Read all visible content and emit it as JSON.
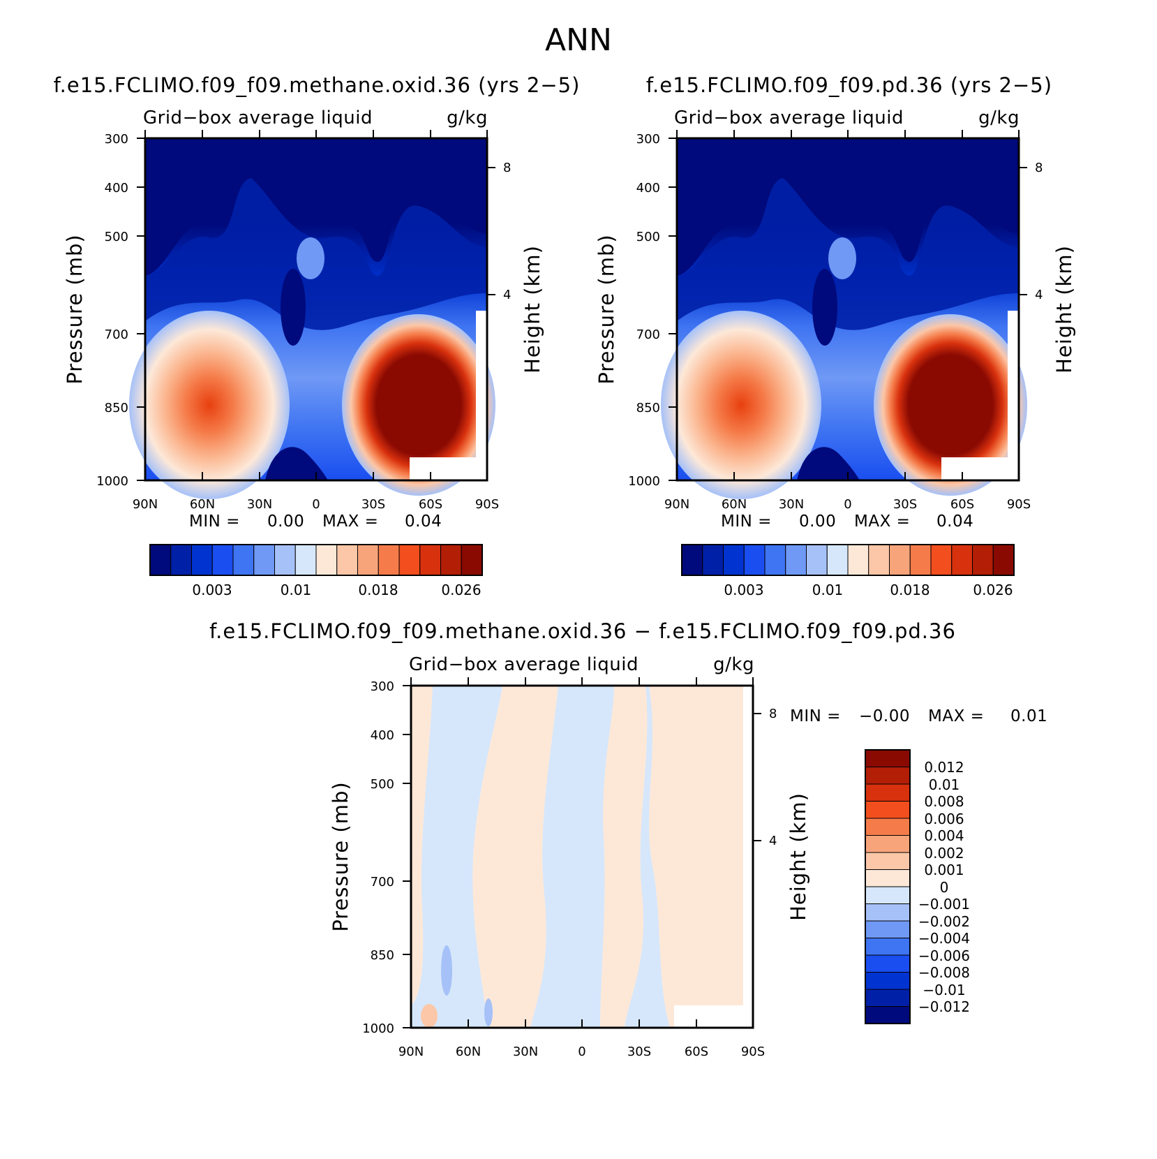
{
  "figure_title": "ANN",
  "colors": {
    "abs_levels": [
      "#000a7c",
      "#0020a8",
      "#0033d0",
      "#1a4ef0",
      "#3f74f2",
      "#6f99f5",
      "#a6c1f8",
      "#d6e7fb",
      "#fde8d8",
      "#fbc7a8",
      "#f8a47b",
      "#f57c4a",
      "#f24e1e",
      "#d8310e",
      "#b21e06",
      "#8a0a02"
    ],
    "diff_levels": [
      "#000a7c",
      "#0020a8",
      "#0033d0",
      "#1a4ef0",
      "#3f74f2",
      "#6f99f5",
      "#a6c1f8",
      "#d6e7fb",
      "#fde8d8",
      "#fbc7a8",
      "#f8a47b",
      "#f57c4a",
      "#f24e1e",
      "#d8310e",
      "#b21e06",
      "#8a0a02"
    ]
  },
  "chart_data": [
    {
      "type": "heatmap",
      "title": "f.e15.FCLIMO.f09_f09.methane.oxid.36 (yrs 2−5)",
      "variable_label": "Grid−box average liquid",
      "units": "g/kg",
      "xlabel": "",
      "ylabel": "Pressure (mb)",
      "y2label": "Height (km)",
      "x_ticks": [
        "90N",
        "60N",
        "30N",
        "0",
        "30S",
        "60S",
        "90S"
      ],
      "y_ticks": [
        "300",
        "400",
        "500",
        "700",
        "850",
        "1000"
      ],
      "y2_ticks": [
        "8",
        "4"
      ],
      "min_label": "MIN =",
      "min_value": "0.00",
      "max_label": "MAX =",
      "max_value": "0.04",
      "colorbar_labels": [
        "0.003",
        "0.01",
        "0.018",
        "0.026"
      ]
    },
    {
      "type": "heatmap",
      "title": "f.e15.FCLIMO.f09_f09.pd.36 (yrs 2−5)",
      "variable_label": "Grid−box average liquid",
      "units": "g/kg",
      "xlabel": "",
      "ylabel": "Pressure (mb)",
      "y2label": "Height (km)",
      "x_ticks": [
        "90N",
        "60N",
        "30N",
        "0",
        "30S",
        "60S",
        "90S"
      ],
      "y_ticks": [
        "300",
        "400",
        "500",
        "700",
        "850",
        "1000"
      ],
      "y2_ticks": [
        "8",
        "4"
      ],
      "min_label": "MIN =",
      "min_value": "0.00",
      "max_label": "MAX =",
      "max_value": "0.04",
      "colorbar_labels": [
        "0.003",
        "0.01",
        "0.018",
        "0.026"
      ]
    },
    {
      "type": "heatmap",
      "title": "f.e15.FCLIMO.f09_f09.methane.oxid.36 − f.e15.FCLIMO.f09_f09.pd.36",
      "variable_label": "Grid−box average liquid",
      "units": "g/kg",
      "xlabel": "",
      "ylabel": "Pressure (mb)",
      "y2label": "Height (km)",
      "x_ticks": [
        "90N",
        "60N",
        "30N",
        "0",
        "30S",
        "60S",
        "90S"
      ],
      "y_ticks": [
        "300",
        "400",
        "500",
        "700",
        "850",
        "1000"
      ],
      "y2_ticks": [
        "8",
        "4"
      ],
      "min_label": "MIN =",
      "min_value": "−0.00",
      "max_label": "MAX =",
      "max_value": "0.01",
      "colorbar_labels": [
        "0.012",
        "0.01",
        "0.008",
        "0.006",
        "0.004",
        "0.002",
        "0.001",
        "0",
        "−0.001",
        "−0.002",
        "−0.004",
        "−0.006",
        "−0.008",
        "−0.01",
        "−0.012"
      ]
    }
  ]
}
